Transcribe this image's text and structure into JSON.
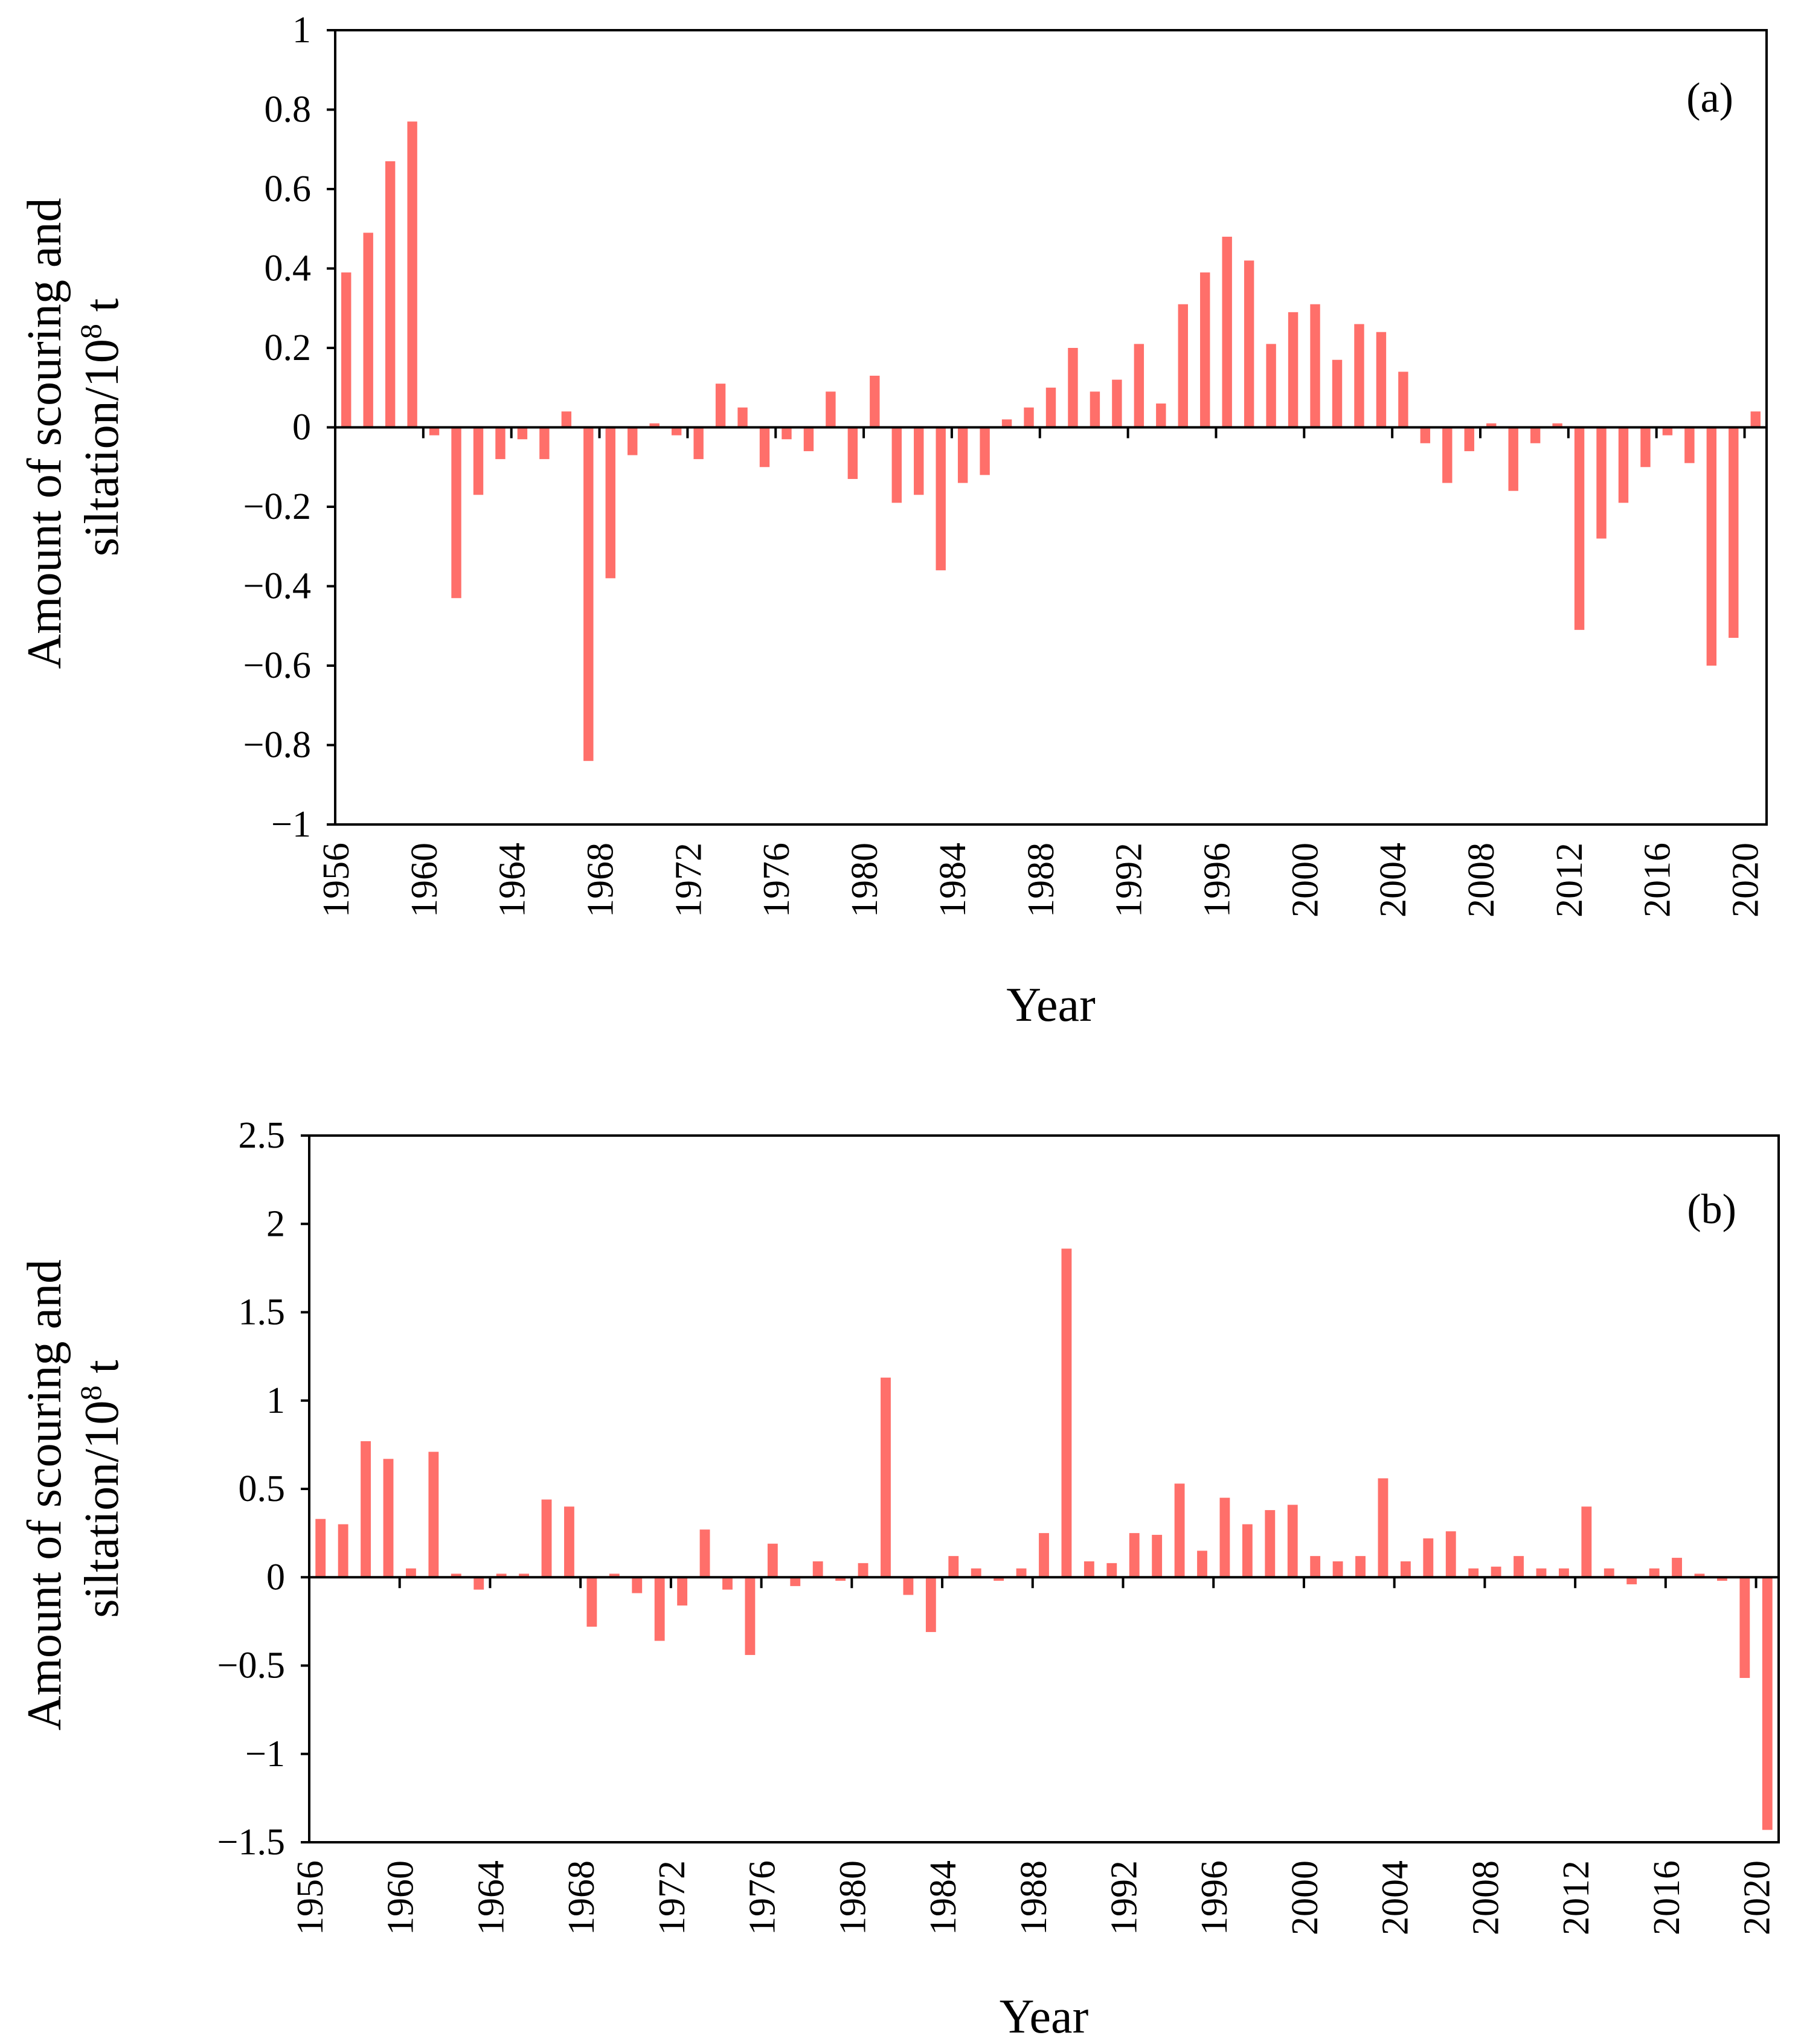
{
  "bar_color": "#ff6f6a",
  "chart_data": [
    {
      "type": "bar",
      "panel_label": "(a)",
      "ylabel_line1": "Amount of scouring and",
      "ylabel_line2_prefix": "siltation/10",
      "ylabel_line2_sup": "8",
      "ylabel_line2_suffix": " t",
      "xlabel": "Year",
      "ylim": [
        -1,
        1
      ],
      "yticks": [
        1,
        0.8,
        0.6,
        0.4,
        0.2,
        0,
        -0.2,
        -0.4,
        -0.6,
        -0.8,
        -1
      ],
      "ytick_labels": [
        "1",
        "0.8",
        "0.6",
        "0.4",
        "0.2",
        "0",
        "−0.2",
        "−0.4",
        "−0.6",
        "−0.8",
        "−1"
      ],
      "xtick_labels": [
        "1956",
        "1960",
        "1964",
        "1968",
        "1972",
        "1976",
        "1980",
        "1984",
        "1988",
        "1992",
        "1996",
        "2000",
        "2004",
        "2008",
        "2012",
        "2016",
        "2020"
      ],
      "year_start": 1956,
      "year_end": 2020,
      "values": [
        0.39,
        0.49,
        0.67,
        0.77,
        -0.02,
        -0.43,
        -0.17,
        -0.08,
        -0.03,
        -0.08,
        0.04,
        -0.84,
        -0.38,
        -0.07,
        0.01,
        -0.02,
        -0.08,
        0.11,
        0.05,
        -0.1,
        -0.03,
        -0.06,
        0.09,
        -0.13,
        0.13,
        -0.19,
        -0.17,
        -0.36,
        -0.14,
        -0.12,
        0.02,
        0.05,
        0.1,
        0.2,
        0.09,
        0.12,
        0.21,
        0.06,
        0.31,
        0.39,
        0.48,
        0.42,
        0.21,
        0.29,
        0.31,
        0.17,
        0.26,
        0.24,
        0.14,
        -0.04,
        -0.14,
        -0.06,
        0.01,
        -0.16,
        -0.04,
        0.01,
        -0.51,
        -0.28,
        -0.19,
        -0.1,
        -0.02,
        -0.09,
        -0.6,
        -0.53,
        0.04
      ]
    },
    {
      "type": "bar",
      "panel_label": "(b)",
      "ylabel_line1": "Amount of scouring and",
      "ylabel_line2_prefix": "siltation/10",
      "ylabel_line2_sup": "8",
      "ylabel_line2_suffix": " t",
      "xlabel": "Year",
      "ylim": [
        -1.5,
        2.5
      ],
      "yticks": [
        2.5,
        2,
        1.5,
        1,
        0.5,
        0,
        -0.5,
        -1,
        -1.5
      ],
      "ytick_labels": [
        "2.5",
        "2",
        "1.5",
        "1",
        "0.5",
        "0",
        "−0.5",
        "−1",
        "−1.5"
      ],
      "xtick_labels": [
        "1956",
        "1960",
        "1964",
        "1968",
        "1972",
        "1976",
        "1980",
        "1984",
        "1988",
        "1992",
        "1996",
        "2000",
        "2004",
        "2008",
        "2012",
        "2016",
        "2020"
      ],
      "year_start": 1956,
      "year_end": 2020,
      "values": [
        0.33,
        0.3,
        0.77,
        0.67,
        0.05,
        0.71,
        0.02,
        -0.07,
        0.02,
        0.02,
        0.44,
        0.4,
        -0.28,
        0.02,
        -0.09,
        -0.36,
        -0.16,
        0.27,
        -0.07,
        -0.44,
        0.19,
        -0.05,
        0.09,
        -0.02,
        0.08,
        1.13,
        -0.1,
        -0.31,
        0.12,
        0.05,
        -0.02,
        0.05,
        0.25,
        1.86,
        0.09,
        0.08,
        0.25,
        0.24,
        0.53,
        0.15,
        0.45,
        0.3,
        0.38,
        0.41,
        0.12,
        0.09,
        0.12,
        0.56,
        0.09,
        0.22,
        0.26,
        0.05,
        0.06,
        0.12,
        0.05,
        0.05,
        0.4,
        0.05,
        -0.04,
        0.05,
        0.11,
        0.02,
        -0.02,
        -0.57,
        -1.43
      ]
    }
  ]
}
